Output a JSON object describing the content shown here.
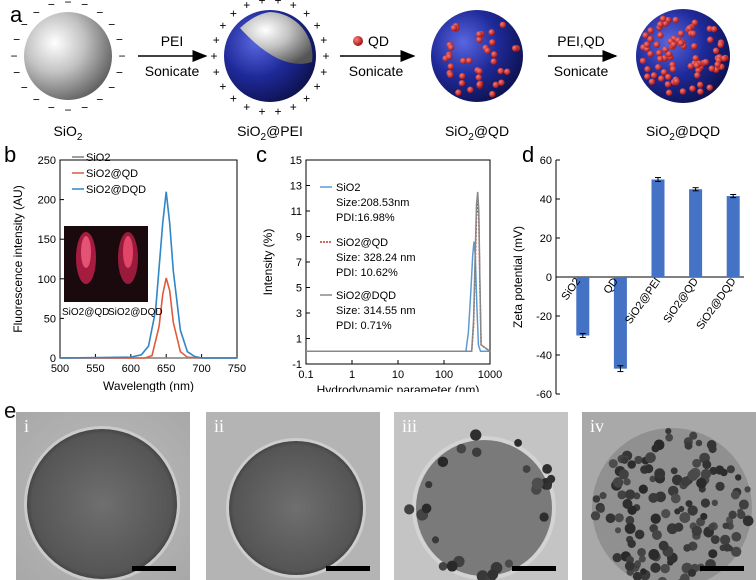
{
  "panel_a": {
    "letter": "a",
    "steps": [
      {
        "reagent": "PEI",
        "method": "Sonicate"
      },
      {
        "reagent": "QD",
        "method": "Sonicate"
      },
      {
        "reagent": "PEI,QD",
        "method": "Sonicate"
      }
    ],
    "particles": [
      "SiO2",
      "SiO2@PEI",
      "SiO2@QD",
      "SiO2@DQD"
    ],
    "colors": {
      "silica": "#b8b8b8",
      "pei": "#1f2a9a",
      "qd": "#c81d1d"
    }
  },
  "panel_b": {
    "letter": "b",
    "inset_labels": [
      "SiO2@QD",
      "SiO2@DQD"
    ],
    "chart_data": {
      "type": "line",
      "xlabel": "Wavelength (nm)",
      "ylabel": "Fluorescence intensity (AU)",
      "xlim": [
        500,
        750
      ],
      "ylim": [
        0,
        250
      ],
      "xticks": [
        500,
        550,
        600,
        650,
        700,
        750
      ],
      "yticks": [
        0,
        50,
        100,
        150,
        200,
        250
      ],
      "legend_position": "top-left",
      "series": [
        {
          "name": "SiO2",
          "color": "#7f7f7f",
          "x": [
            500,
            600,
            620,
            640,
            650,
            660,
            680,
            700,
            750
          ],
          "y": [
            0,
            0,
            0,
            0,
            0,
            0,
            0,
            0,
            0
          ]
        },
        {
          "name": "SiO2@QD",
          "color": "#e05a3c",
          "x": [
            500,
            620,
            630,
            640,
            645,
            650,
            655,
            660,
            670,
            680,
            700,
            750
          ],
          "y": [
            0,
            0,
            3,
            40,
            80,
            101,
            85,
            45,
            8,
            1,
            0,
            0
          ]
        },
        {
          "name": "SiO2@DQD",
          "color": "#2f86c8",
          "x": [
            500,
            600,
            615,
            625,
            635,
            645,
            650,
            655,
            660,
            670,
            680,
            690,
            700,
            750
          ],
          "y": [
            0,
            1,
            4,
            15,
            60,
            170,
            210,
            170,
            110,
            35,
            8,
            2,
            0,
            0
          ]
        }
      ]
    }
  },
  "panel_c": {
    "letter": "c",
    "chart_data": {
      "type": "line",
      "xlabel": "Hydrodynamic parameter (nm)",
      "ylabel": "Intensity (%)",
      "xscale": "log",
      "xlim": [
        0.1,
        1000
      ],
      "ylim": [
        -1,
        15
      ],
      "xticks": [
        0.1,
        1,
        10,
        100,
        1000
      ],
      "yticks": [
        -1,
        1,
        3,
        5,
        7,
        9,
        11,
        13,
        15
      ],
      "series": [
        {
          "name": "SiO2",
          "color": "#5b9bd5",
          "style": "solid",
          "annotation": [
            "SiO2",
            "Size:208.53nm",
            "PDI:16.98%"
          ],
          "x": [
            0.1,
            300,
            340,
            380,
            420,
            450,
            480,
            520,
            560,
            620,
            1000
          ],
          "y": [
            0,
            0,
            1.5,
            4.5,
            7.5,
            8.6,
            7.5,
            3.5,
            0.5,
            0,
            0
          ]
        },
        {
          "name": "SiO2@QD",
          "color": "#c0392b",
          "style": "dotted",
          "annotation": [
            "SiO2@QD",
            "Size: 328.24 nm",
            "PDI: 10.62%"
          ],
          "x": [
            0.1,
            400,
            440,
            480,
            510,
            540,
            570,
            600,
            640,
            1000
          ],
          "y": [
            0,
            0,
            2,
            7,
            10.5,
            11.9,
            10.5,
            5.5,
            0.5,
            0
          ]
        },
        {
          "name": "SiO2@DQD",
          "color": "#888888",
          "style": "solid",
          "annotation": [
            "SiO2@DQD",
            "Size: 314.55 nm",
            "PDI: 0.71%"
          ],
          "x": [
            0.1,
            400,
            440,
            480,
            510,
            540,
            570,
            600,
            640,
            1000
          ],
          "y": [
            0,
            0,
            2.5,
            8,
            11.5,
            12.5,
            11,
            6,
            0.5,
            0
          ]
        }
      ]
    }
  },
  "panel_d": {
    "letter": "d",
    "chart_data": {
      "type": "bar",
      "ylabel": "Zeta potential (mV)",
      "ylim": [
        -60,
        60
      ],
      "yticks": [
        -60,
        -40,
        -20,
        0,
        20,
        40,
        60
      ],
      "categories": [
        "SiO2",
        "QD",
        "SiO2@PEI",
        "SiO2@QD",
        "SiO2@DQD"
      ],
      "values": [
        -30,
        -47,
        50,
        45,
        41.5
      ],
      "errors": [
        1,
        1.5,
        1,
        0.8,
        0.8
      ],
      "color": "#4472c4"
    }
  },
  "panel_e": {
    "letter": "e",
    "images": [
      "i",
      "ii",
      "iii",
      "iv"
    ]
  }
}
